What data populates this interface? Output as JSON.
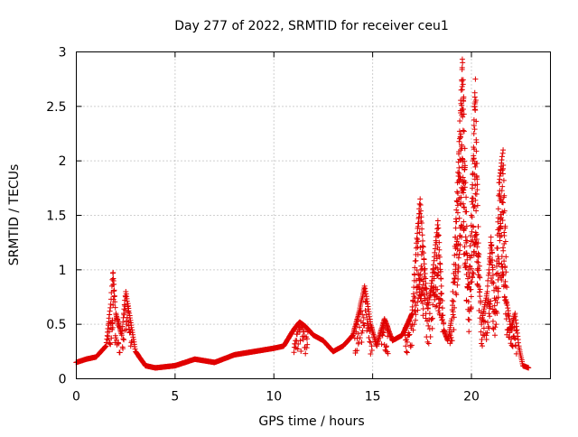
{
  "chart_data": {
    "type": "scatter",
    "title": "Day 277 of 2022, SRMTID for receiver ceu1",
    "xlabel": "GPS time / hours",
    "ylabel": "SRMTID / TECUs",
    "xlim": [
      0,
      24
    ],
    "ylim": [
      0,
      3
    ],
    "x_ticks": [
      0,
      5,
      10,
      15,
      20
    ],
    "y_ticks": [
      0,
      0.5,
      1,
      1.5,
      2,
      2.5,
      3
    ],
    "x_tick_labels": [
      "0",
      "5",
      "10",
      "15",
      "20"
    ],
    "y_tick_labels": [
      "0",
      "0.5",
      "1",
      "1.5",
      "2",
      "2.5",
      "3"
    ],
    "grid": true,
    "marker": "plus",
    "color": "#e00000",
    "envelope": {
      "description": "approximate upper envelope of the plotted points (hours, TECU)",
      "x": [
        0.0,
        0.5,
        1.0,
        1.5,
        1.75,
        1.85,
        2.0,
        2.3,
        2.5,
        3.0,
        3.5,
        4.0,
        5.0,
        5.5,
        6.0,
        7.0,
        8.0,
        9.0,
        10.0,
        10.5,
        11.0,
        11.3,
        11.6,
        12.0,
        12.5,
        13.0,
        13.5,
        14.0,
        14.3,
        14.6,
        14.9,
        15.2,
        15.6,
        16.0,
        16.5,
        17.0,
        17.2,
        17.4,
        17.6,
        17.8,
        18.0,
        18.3,
        18.6,
        18.8,
        19.0,
        19.3,
        19.55,
        19.7,
        19.85,
        20.0,
        20.2,
        20.35,
        20.5,
        20.8,
        21.0,
        21.2,
        21.4,
        21.6,
        21.8,
        22.0,
        22.2,
        22.4,
        22.6,
        22.9
      ],
      "y": [
        0.15,
        0.18,
        0.2,
        0.3,
        0.7,
        1.0,
        0.6,
        0.4,
        0.8,
        0.25,
        0.12,
        0.1,
        0.12,
        0.15,
        0.18,
        0.15,
        0.22,
        0.25,
        0.28,
        0.3,
        0.45,
        0.52,
        0.48,
        0.4,
        0.35,
        0.25,
        0.3,
        0.4,
        0.6,
        0.85,
        0.5,
        0.3,
        0.55,
        0.35,
        0.4,
        0.6,
        1.2,
        1.65,
        1.1,
        0.65,
        0.9,
        1.45,
        0.45,
        0.35,
        0.55,
        1.8,
        2.98,
        1.8,
        0.8,
        1.5,
        2.75,
        1.3,
        0.5,
        0.8,
        1.3,
        0.6,
        1.8,
        2.1,
        0.7,
        0.45,
        0.6,
        0.3,
        0.12,
        0.1
      ]
    }
  }
}
